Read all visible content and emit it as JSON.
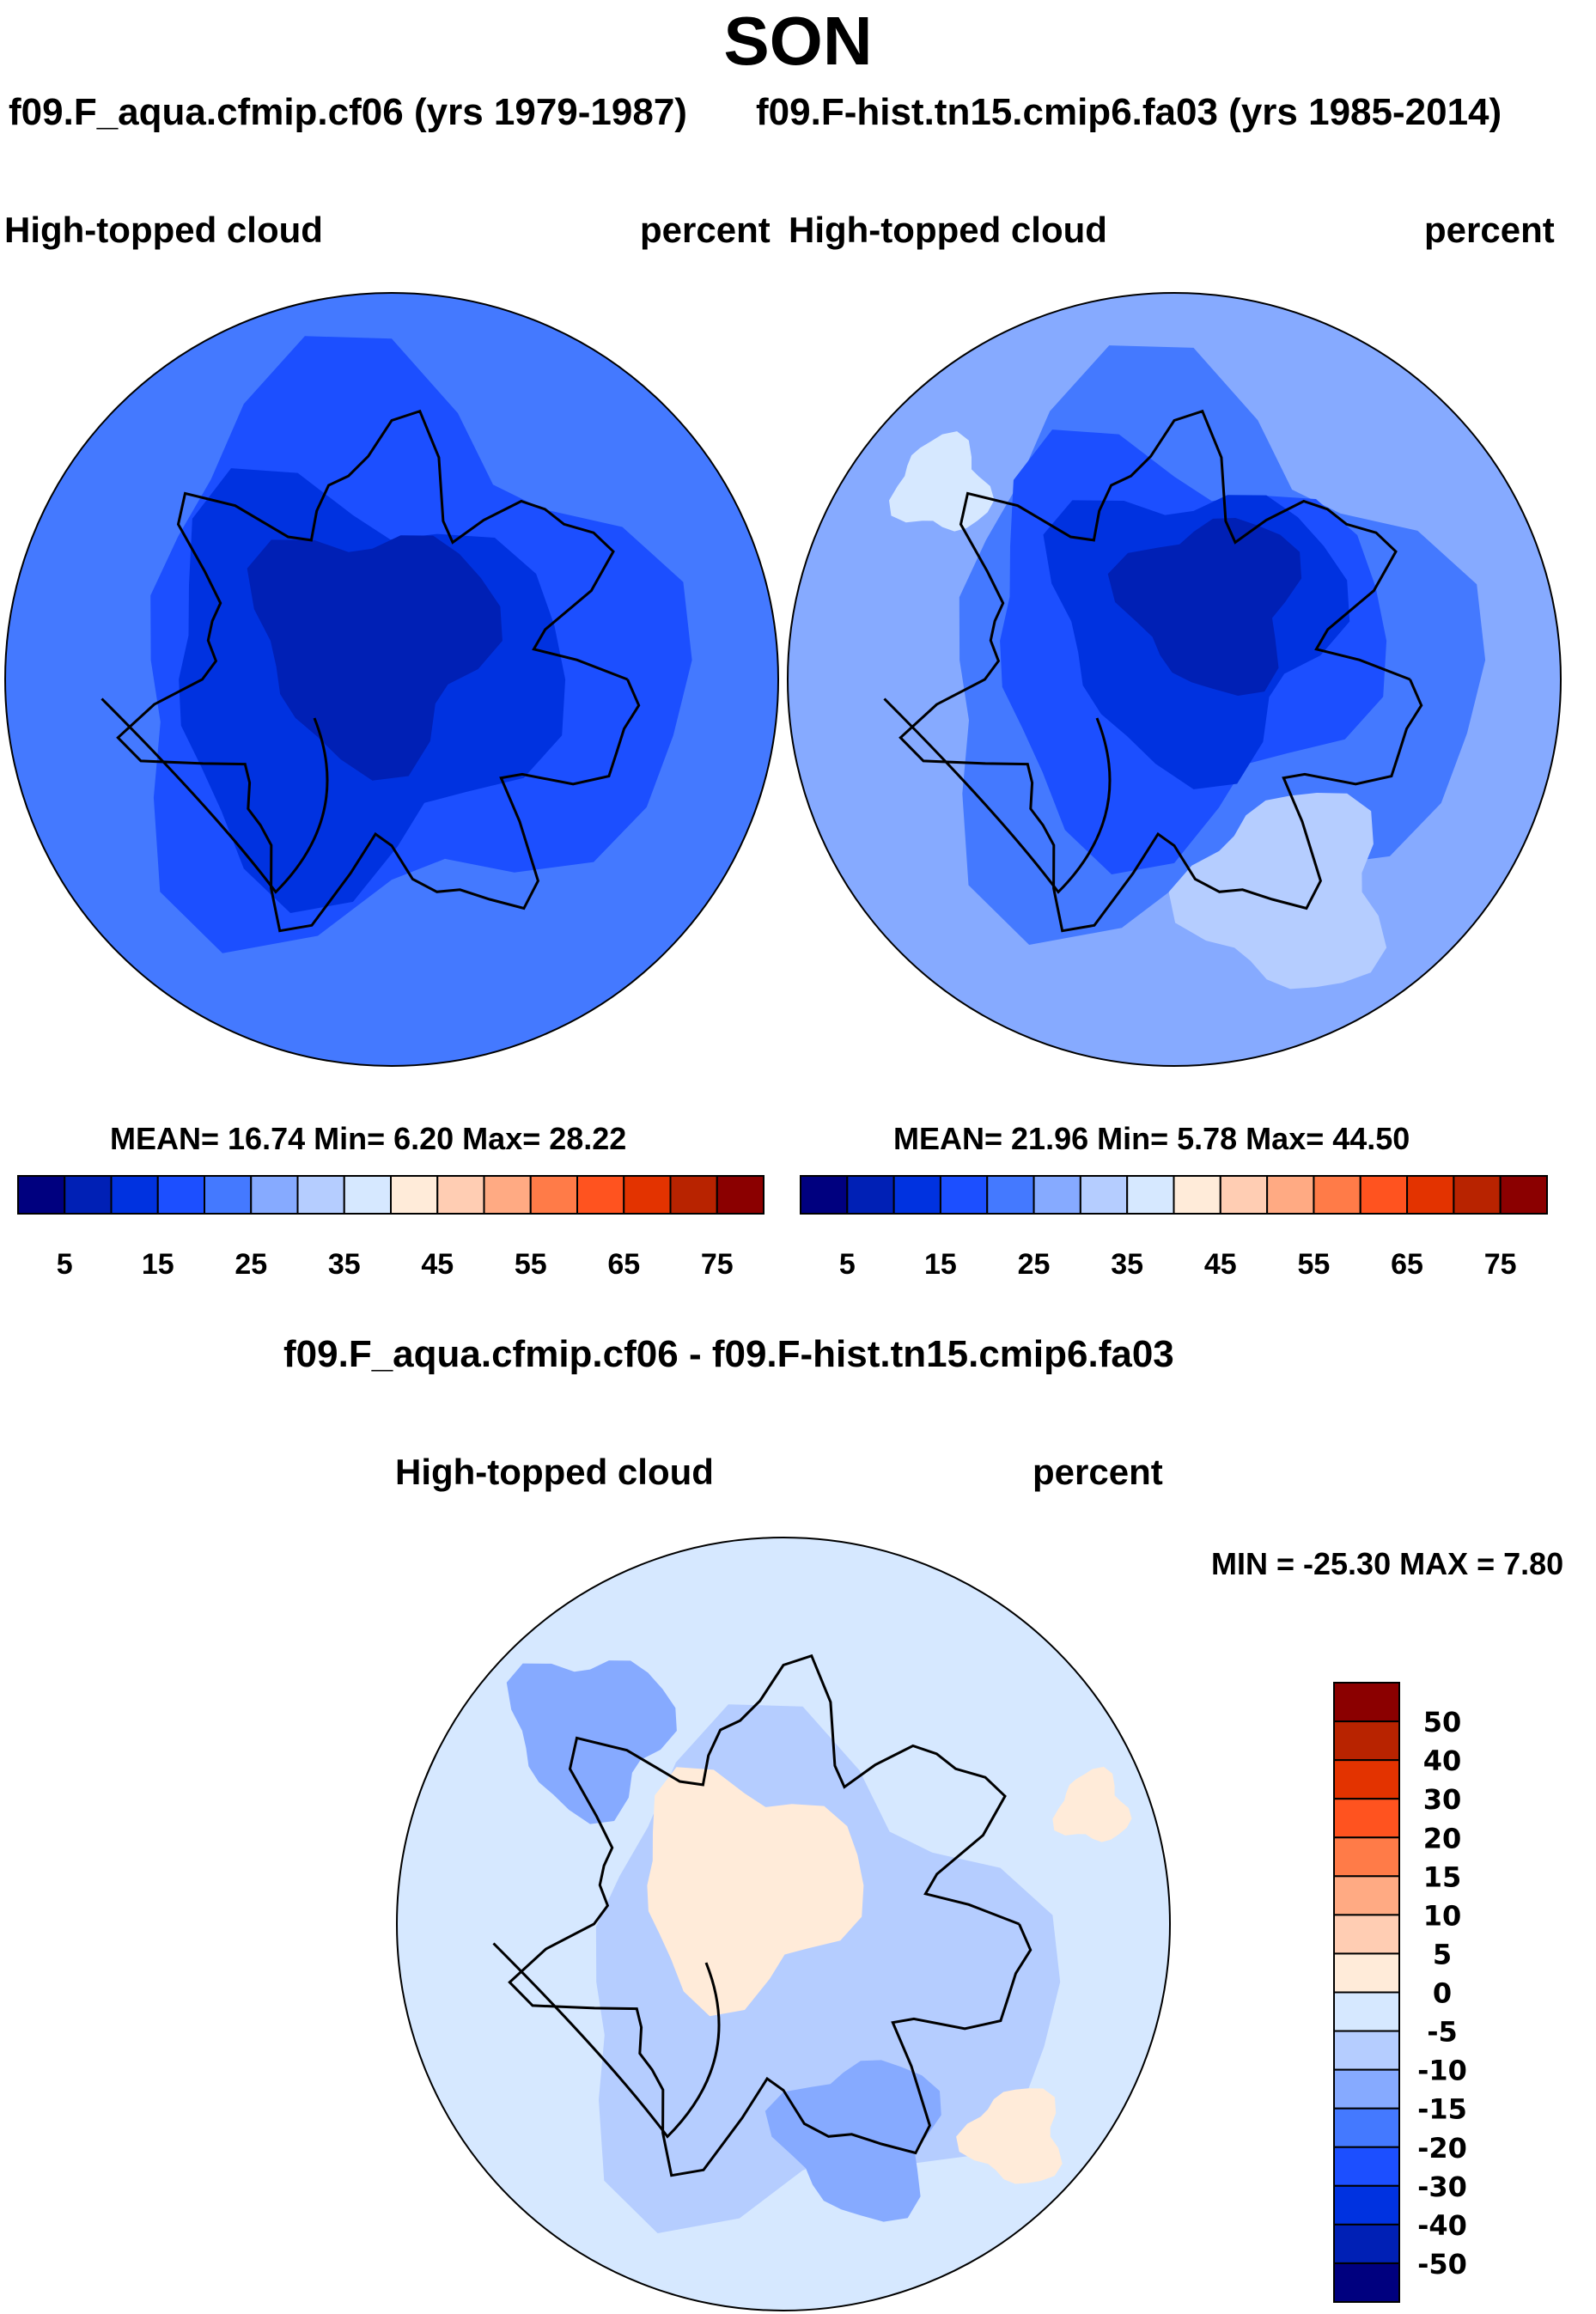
{
  "title": "SON",
  "panels": [
    {
      "subtitle": "f09.F_aqua.cfmip.cf06 (yrs 1979-1987)",
      "variable": "High-topped cloud",
      "units": "percent",
      "stats": "MEAN=  16.74  Min=   6.20  Max=  28.22"
    },
    {
      "subtitle": "f09.F-hist.tn15.cmip6.fa03 (yrs 1985-2014)",
      "variable": "High-topped cloud",
      "units": "percent",
      "stats": "MEAN=  21.96  Min=   5.78  Max=  44.50"
    }
  ],
  "diff": {
    "title": "f09.F_aqua.cfmip.cf06 - f09.F-hist.tn15.cmip6.fa03",
    "variable": "High-topped cloud",
    "units": "percent",
    "stats": "MIN = -25.30 MAX =   7.80"
  },
  "chart_data": [
    {
      "type": "heatmap",
      "projection": "north-polar-stereographic",
      "title": "High-topped cloud",
      "units": "percent",
      "mean": 16.74,
      "min": 6.2,
      "max": 28.22,
      "colorbar_ticks": [
        "5",
        "15",
        "25",
        "35",
        "45",
        "55",
        "65",
        "75"
      ],
      "colorbar_orientation": "horizontal"
    },
    {
      "type": "heatmap",
      "projection": "north-polar-stereographic",
      "title": "High-topped cloud",
      "units": "percent",
      "mean": 21.96,
      "min": 5.78,
      "max": 44.5,
      "colorbar_ticks": [
        "5",
        "15",
        "25",
        "35",
        "45",
        "55",
        "65",
        "75"
      ],
      "colorbar_orientation": "horizontal"
    },
    {
      "type": "heatmap",
      "projection": "north-polar-stereographic",
      "title": "High-topped cloud",
      "units": "percent",
      "min": -25.3,
      "max": 7.8,
      "colorbar_ticks": [
        "50",
        "40",
        "30",
        "20",
        "15",
        "10",
        "5",
        "0",
        "-5",
        "-10",
        "-15",
        "-20",
        "-30",
        "-40",
        "-50"
      ],
      "colorbar_orientation": "vertical"
    }
  ],
  "colors": [
    "#00007f",
    "#0020b5",
    "#0032e0",
    "#1c4fff",
    "#4479ff",
    "#86aaff",
    "#b5cdff",
    "#d6e8ff",
    "#ffebd9",
    "#ffcdb3",
    "#ffaa83",
    "#ff7b48",
    "#ff531f",
    "#e33300",
    "#b82300",
    "#8b0000"
  ]
}
